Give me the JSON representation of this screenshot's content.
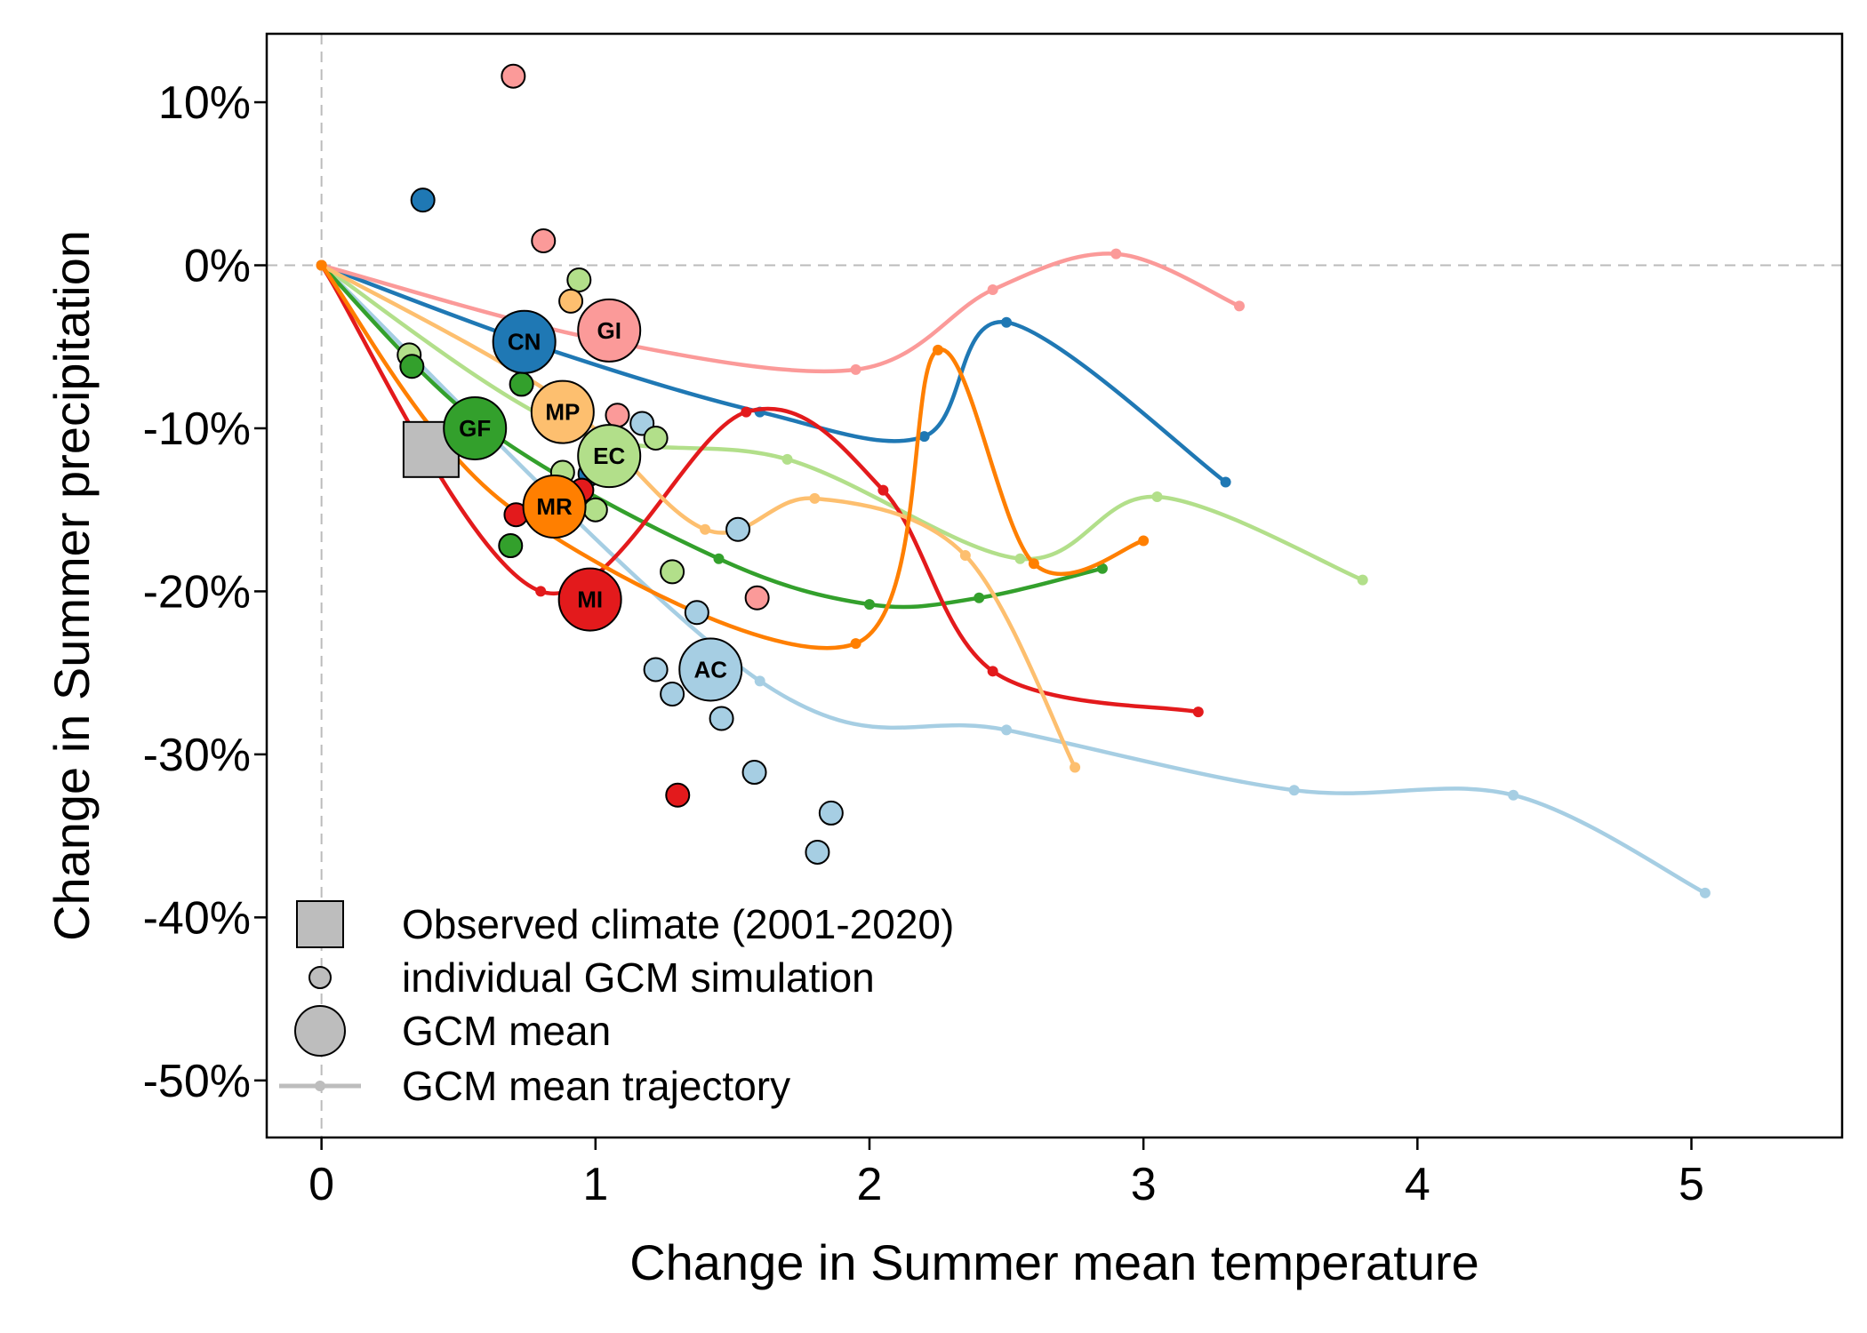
{
  "chart_data": {
    "type": "scatter",
    "xlabel": "Change in Summer mean temperature",
    "ylabel": "Change in Summer precipitation",
    "xlim": [
      -0.2,
      5.55
    ],
    "ylim": [
      -0.535,
      0.142
    ],
    "x_ticks": [
      0,
      1,
      2,
      3,
      4,
      5
    ],
    "x_tick_labels": [
      "0",
      "1",
      "2",
      "3",
      "4",
      "5"
    ],
    "y_ticks": [
      0.1,
      0.0,
      -0.1,
      -0.2,
      -0.3,
      -0.4,
      -0.5
    ],
    "y_tick_labels": [
      "10%",
      "0%",
      "-10%",
      "-20%",
      "-30%",
      "-40%",
      "-50%"
    ],
    "reference_lines": {
      "x": 0,
      "y": 0,
      "style": "dashed",
      "color": "#bbbbbb"
    },
    "observed": {
      "x": 0.4,
      "y": -0.113,
      "color": "#bdbdbd"
    },
    "legend": {
      "position": "bottom-left",
      "entries": [
        {
          "label": "Observed climate (2001-2020)",
          "symbol": "square"
        },
        {
          "label": "individual GCM simulation",
          "symbol": "small-circle"
        },
        {
          "label": "GCM mean",
          "symbol": "large-circle"
        },
        {
          "label": "GCM mean trajectory",
          "symbol": "line-dot"
        }
      ]
    },
    "series": [
      {
        "name": "AC",
        "color": "#a6cee3",
        "mean": [
          1.42,
          -0.248
        ],
        "trajectory": [
          [
            0,
            0
          ],
          [
            1.6,
            -0.255
          ],
          [
            2.5,
            -0.285
          ],
          [
            3.55,
            -0.322
          ],
          [
            4.35,
            -0.325
          ],
          [
            5.05,
            -0.385
          ]
        ],
        "members": [
          [
            1.52,
            -0.162
          ],
          [
            1.37,
            -0.213
          ],
          [
            1.22,
            -0.248
          ],
          [
            1.28,
            -0.263
          ],
          [
            1.46,
            -0.278
          ],
          [
            1.58,
            -0.311
          ],
          [
            1.86,
            -0.336
          ],
          [
            1.81,
            -0.36
          ],
          [
            1.17,
            -0.097
          ]
        ]
      },
      {
        "name": "CN",
        "color": "#1f78b4",
        "mean": [
          0.74,
          -0.047
        ],
        "trajectory": [
          [
            0,
            0
          ],
          [
            0.8,
            -0.05
          ],
          [
            1.6,
            -0.09
          ],
          [
            2.2,
            -0.105
          ],
          [
            2.5,
            -0.035
          ],
          [
            3.3,
            -0.133
          ]
        ],
        "members": [
          [
            0.37,
            0.04
          ],
          [
            0.98,
            -0.128
          ]
        ]
      },
      {
        "name": "EC",
        "color": "#b2df8a",
        "mean": [
          1.05,
          -0.117
        ],
        "trajectory": [
          [
            0,
            0
          ],
          [
            0.9,
            -0.1
          ],
          [
            1.7,
            -0.119
          ],
          [
            2.55,
            -0.18
          ],
          [
            3.05,
            -0.142
          ],
          [
            3.8,
            -0.193
          ]
        ],
        "members": [
          [
            0.94,
            -0.009
          ],
          [
            0.32,
            -0.055
          ],
          [
            0.88,
            -0.127
          ],
          [
            1.0,
            -0.15
          ],
          [
            1.22,
            -0.106
          ],
          [
            1.28,
            -0.188
          ]
        ]
      },
      {
        "name": "GF",
        "color": "#33a02c",
        "mean": [
          0.56,
          -0.1
        ],
        "trajectory": [
          [
            0,
            0
          ],
          [
            0.6,
            -0.1
          ],
          [
            1.45,
            -0.18
          ],
          [
            2.0,
            -0.208
          ],
          [
            2.4,
            -0.204
          ],
          [
            2.85,
            -0.186
          ]
        ],
        "members": [
          [
            0.73,
            -0.073
          ],
          [
            0.33,
            -0.062
          ],
          [
            0.69,
            -0.172
          ]
        ]
      },
      {
        "name": "GI",
        "color": "#fb9a99",
        "mean": [
          1.05,
          -0.04
        ],
        "trajectory": [
          [
            0,
            0
          ],
          [
            1.0,
            -0.045
          ],
          [
            1.95,
            -0.064
          ],
          [
            2.45,
            -0.015
          ],
          [
            2.9,
            0.007
          ],
          [
            3.35,
            -0.025
          ]
        ],
        "members": [
          [
            0.7,
            0.116
          ],
          [
            0.81,
            0.015
          ],
          [
            1.08,
            -0.092
          ],
          [
            1.59,
            -0.204
          ]
        ]
      },
      {
        "name": "MI",
        "color": "#e31a1c",
        "mean": [
          0.98,
          -0.205
        ],
        "trajectory": [
          [
            0,
            0
          ],
          [
            0.8,
            -0.2
          ],
          [
            1.55,
            -0.09
          ],
          [
            2.05,
            -0.138
          ],
          [
            2.45,
            -0.249
          ],
          [
            3.2,
            -0.274
          ]
        ],
        "members": [
          [
            0.71,
            -0.153
          ],
          [
            0.95,
            -0.138
          ],
          [
            1.3,
            -0.325
          ]
        ]
      },
      {
        "name": "MP",
        "color": "#fdbf6f",
        "mean": [
          0.88,
          -0.09
        ],
        "trajectory": [
          [
            0,
            0
          ],
          [
            0.85,
            -0.08
          ],
          [
            1.4,
            -0.162
          ],
          [
            1.8,
            -0.143
          ],
          [
            2.35,
            -0.178
          ],
          [
            2.75,
            -0.308
          ]
        ],
        "members": [
          [
            0.91,
            -0.022
          ]
        ]
      },
      {
        "name": "MR",
        "color": "#ff7f00",
        "mean": [
          0.85,
          -0.148
        ],
        "trajectory": [
          [
            0,
            0
          ],
          [
            0.7,
            -0.15
          ],
          [
            1.95,
            -0.232
          ],
          [
            2.25,
            -0.052
          ],
          [
            2.6,
            -0.183
          ],
          [
            3.0,
            -0.169
          ]
        ],
        "members": []
      }
    ]
  }
}
